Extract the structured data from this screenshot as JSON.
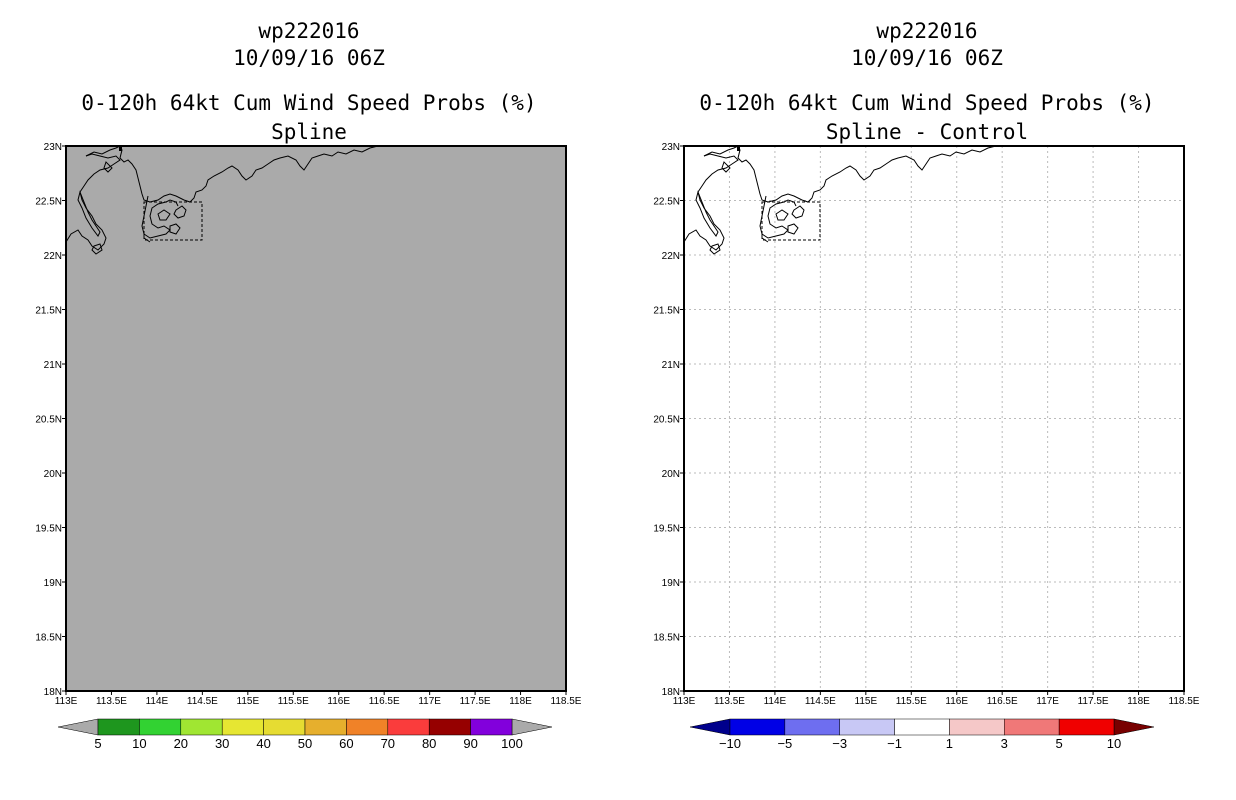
{
  "panels": [
    {
      "storm_id": "wp222016",
      "datetime": "10/09/16 06Z",
      "product": "0-120h 64kt Cum Wind Speed Probs (%)",
      "subtitle": "Spline",
      "map_fill": "#aaaaaa",
      "gridlines": false,
      "lat_labels": [
        "23N",
        "22.5N",
        "22N",
        "21.5N",
        "21N",
        "20.5N",
        "20N",
        "19.5N",
        "19N",
        "18.5N",
        "18N"
      ],
      "lon_labels": [
        "113E",
        "113.5E",
        "114E",
        "114.5E",
        "115E",
        "115.5E",
        "116E",
        "116.5E",
        "117E",
        "117.5E",
        "118E",
        "118.5E"
      ],
      "colorbar": {
        "labels": [
          "5",
          "10",
          "20",
          "30",
          "40",
          "50",
          "60",
          "70",
          "80",
          "90",
          "100"
        ],
        "under_color": "#aaaaaa",
        "over_color": "#aaaaaa",
        "colors": [
          "#1e961e",
          "#32d232",
          "#a0e632",
          "#e6e632",
          "#e6dc32",
          "#e6af2d",
          "#f08228",
          "#fa3c3c",
          "#960000",
          "#8200dc"
        ]
      }
    },
    {
      "storm_id": "wp222016",
      "datetime": "10/09/16 06Z",
      "product": "0-120h 64kt Cum Wind Speed Probs (%)",
      "subtitle": "Spline - Control",
      "map_fill": "#ffffff",
      "gridlines": true,
      "lat_labels": [
        "23N",
        "22.5N",
        "22N",
        "21.5N",
        "21N",
        "20.5N",
        "20N",
        "19.5N",
        "19N",
        "18.5N",
        "18N"
      ],
      "lon_labels": [
        "113E",
        "113.5E",
        "114E",
        "114.5E",
        "115E",
        "115.5E",
        "116E",
        "116.5E",
        "117E",
        "117.5E",
        "118E",
        "118.5E"
      ],
      "colorbar": {
        "labels": [
          "-10",
          "-5",
          "-3",
          "-1",
          "1",
          "3",
          "5",
          "10"
        ],
        "under_color": "#00008c",
        "over_color": "#780000",
        "colors": [
          "#0000e6",
          "#6e6ef0",
          "#c8c8f5",
          "#ffffff",
          "#f5c8c8",
          "#f07878",
          "#f00000"
        ]
      }
    }
  ]
}
